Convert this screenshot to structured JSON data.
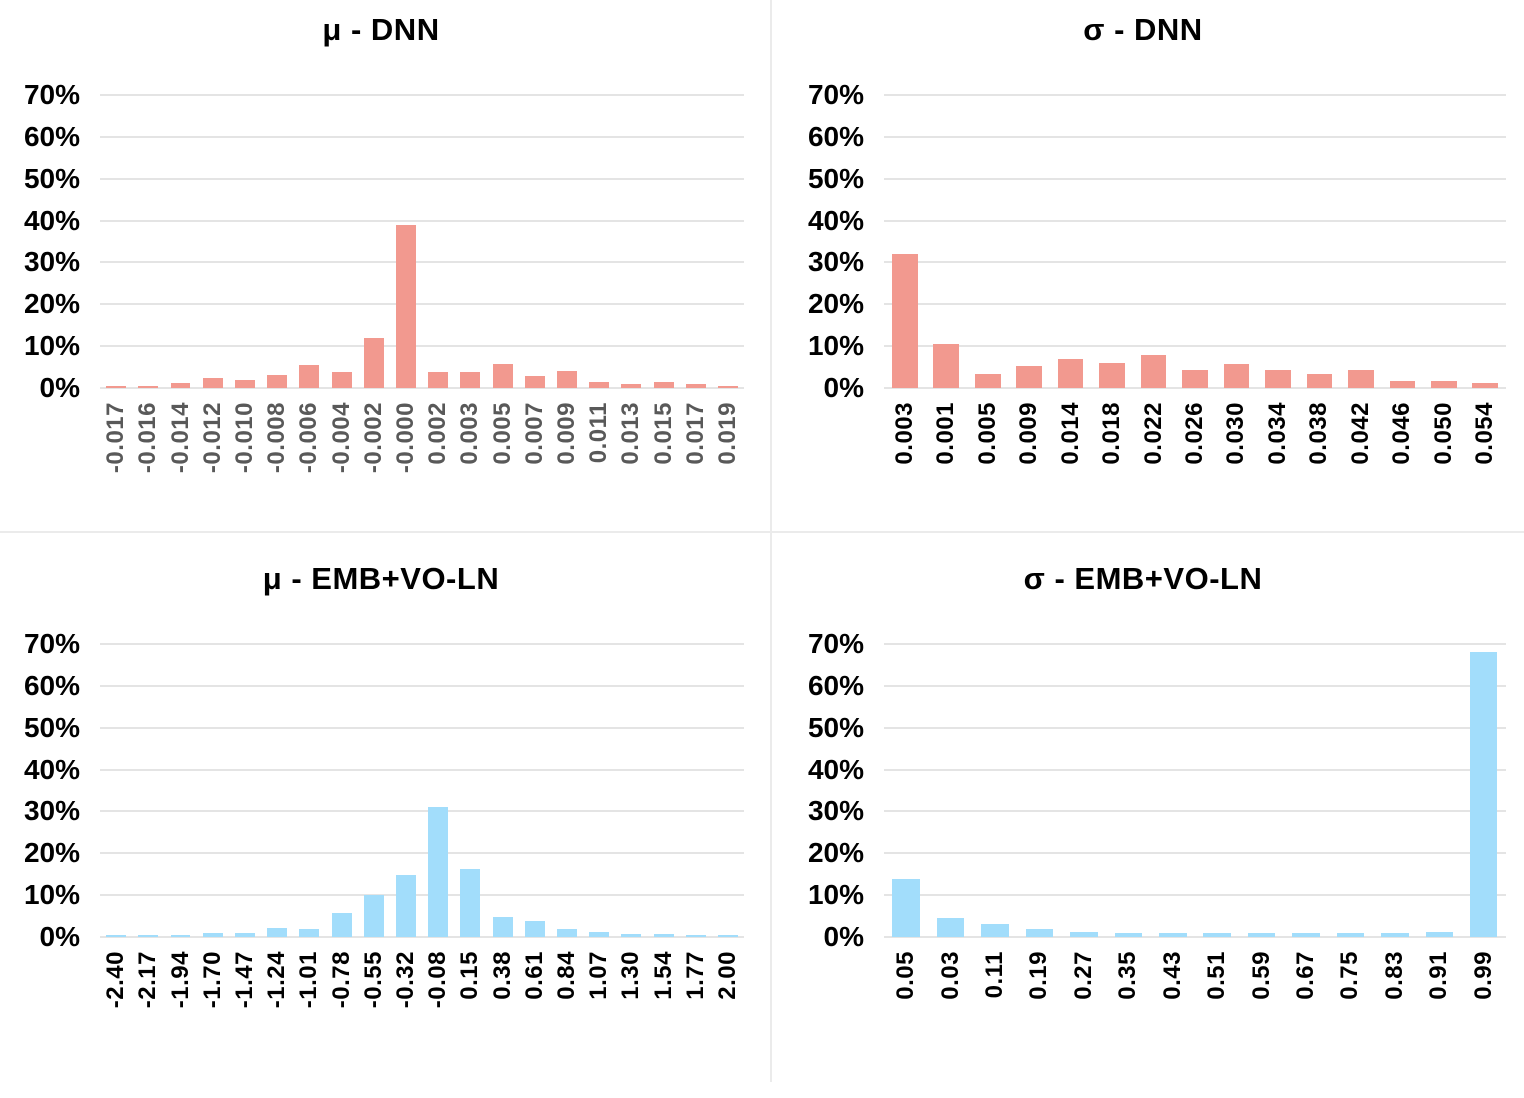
{
  "colors": {
    "salmon": "#F2998F",
    "light_blue": "#A2DDFB",
    "gridline": "#E4E4E4",
    "divider": "#EBEBEB",
    "tick_gray": "#595959",
    "tick_black": "#000000"
  },
  "y_axis": {
    "ticks": [
      "70%",
      "60%",
      "50%",
      "40%",
      "30%",
      "20%",
      "10%",
      "0%"
    ],
    "tick_values": [
      70,
      60,
      50,
      40,
      30,
      20,
      10,
      0
    ],
    "max": 70,
    "step": 10
  },
  "chart_data": [
    {
      "type": "bar",
      "title": "μ - DNN",
      "categories": [
        "-0.017",
        "-0.016",
        "-0.014",
        "-0.012",
        "-0.010",
        "-0.008",
        "-0.006",
        "-0.004",
        "-0.002",
        "-0.000",
        "0.002",
        "0.003",
        "0.005",
        "0.007",
        "0.009",
        "0.011",
        "0.013",
        "0.015",
        "0.017",
        "0.019"
      ],
      "values": [
        0.5,
        0.5,
        1.2,
        2.3,
        1.9,
        3.2,
        5.4,
        3.8,
        12,
        39,
        3.8,
        3.8,
        5.8,
        2.9,
        4,
        1.5,
        1,
        1.5,
        1,
        0.5
      ],
      "xlabel": "",
      "ylabel": "",
      "ylim": [
        0,
        70
      ],
      "grid": true,
      "legend": "none",
      "bar_color": "#F2998F",
      "x_tick_color": "#595959"
    },
    {
      "type": "bar",
      "title": "σ - DNN",
      "categories": [
        "0.003",
        "0.001",
        "0.005",
        "0.009",
        "0.014",
        "0.018",
        "0.022",
        "0.026",
        "0.030",
        "0.034",
        "0.038",
        "0.042",
        "0.046",
        "0.050",
        "0.054"
      ],
      "values": [
        32,
        10.4,
        3.3,
        5.3,
        7,
        5.9,
        7.8,
        4.4,
        5.7,
        4.2,
        3.3,
        4.2,
        1.6,
        1.6,
        1.1
      ],
      "xlabel": "",
      "ylabel": "",
      "ylim": [
        0,
        70
      ],
      "grid": true,
      "legend": "none",
      "bar_color": "#F2998F",
      "x_tick_color": "#000000"
    },
    {
      "type": "bar",
      "title": "μ - EMB+VO-LN",
      "categories": [
        "-2.40",
        "-2.17",
        "-1.94",
        "-1.70",
        "-1.47",
        "-1.24",
        "-1.01",
        "-0.78",
        "-0.55",
        "-0.32",
        "-0.08",
        "0.15",
        "0.38",
        "0.61",
        "0.84",
        "1.07",
        "1.30",
        "1.54",
        "1.77",
        "2.00"
      ],
      "values": [
        0.5,
        0.5,
        0.5,
        1,
        1,
        2.2,
        1.9,
        5.8,
        10,
        14.7,
        31,
        16.2,
        4.7,
        3.9,
        2,
        1.2,
        0.7,
        0.7,
        0.6,
        0.6
      ],
      "xlabel": "",
      "ylabel": "",
      "ylim": [
        0,
        70
      ],
      "grid": true,
      "legend": "none",
      "bar_color": "#A2DDFB",
      "x_tick_color": "#000000"
    },
    {
      "type": "bar",
      "title": "σ - EMB+VO-LN",
      "categories": [
        "0.05",
        "0.03",
        "0.11",
        "0.19",
        "0.27",
        "0.35",
        "0.43",
        "0.51",
        "0.59",
        "0.67",
        "0.75",
        "0.83",
        "0.91",
        "0.99"
      ],
      "values": [
        13.8,
        4.5,
        3,
        1.8,
        1.3,
        0.9,
        0.9,
        1,
        1,
        0.9,
        1,
        0.9,
        1.3,
        68
      ],
      "xlabel": "",
      "ylabel": "",
      "ylim": [
        0,
        70
      ],
      "grid": true,
      "legend": "none",
      "bar_color": "#A2DDFB",
      "x_tick_color": "#000000"
    }
  ]
}
